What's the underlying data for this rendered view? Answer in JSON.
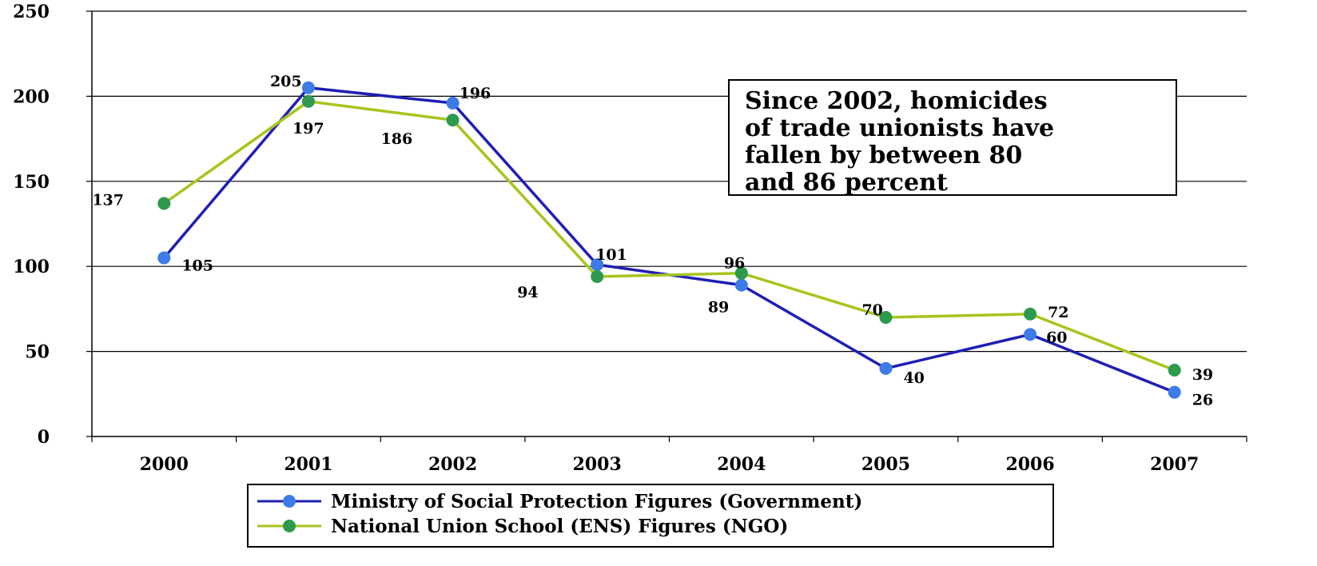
{
  "chart_data": {
    "type": "line",
    "title": "",
    "xlabel": "",
    "ylabel": "",
    "categories": [
      "2000",
      "2001",
      "2002",
      "2003",
      "2004",
      "2005",
      "2006",
      "2007"
    ],
    "ylim": [
      0,
      250
    ],
    "yticks": [
      "0",
      "50",
      "100",
      "150",
      "200",
      "250"
    ],
    "grid": true,
    "legend_position": "bottom-center",
    "series": [
      {
        "name": "Ministry of Social Protection Figures (Government)",
        "color": "#1f1fb4",
        "marker_color": "#3d7be6",
        "values": [
          105,
          205,
          196,
          101,
          89,
          40,
          60,
          26
        ],
        "labels": [
          "105",
          "205",
          "196",
          "101",
          "89",
          "40",
          "60",
          "26"
        ]
      },
      {
        "name": "National Union School (ENS) Figures (NGO)",
        "color": "#a6c51e",
        "marker_color": "#2e9a4e",
        "values": [
          137,
          197,
          186,
          94,
          96,
          70,
          72,
          39
        ],
        "labels": [
          "137",
          "197",
          "186",
          "94",
          "96",
          "70",
          "72",
          "39"
        ]
      }
    ],
    "annotation": [
      "Since 2002, homicides",
      "of trade unionists have",
      "fallen by between 80",
      "and 86 percent"
    ]
  }
}
